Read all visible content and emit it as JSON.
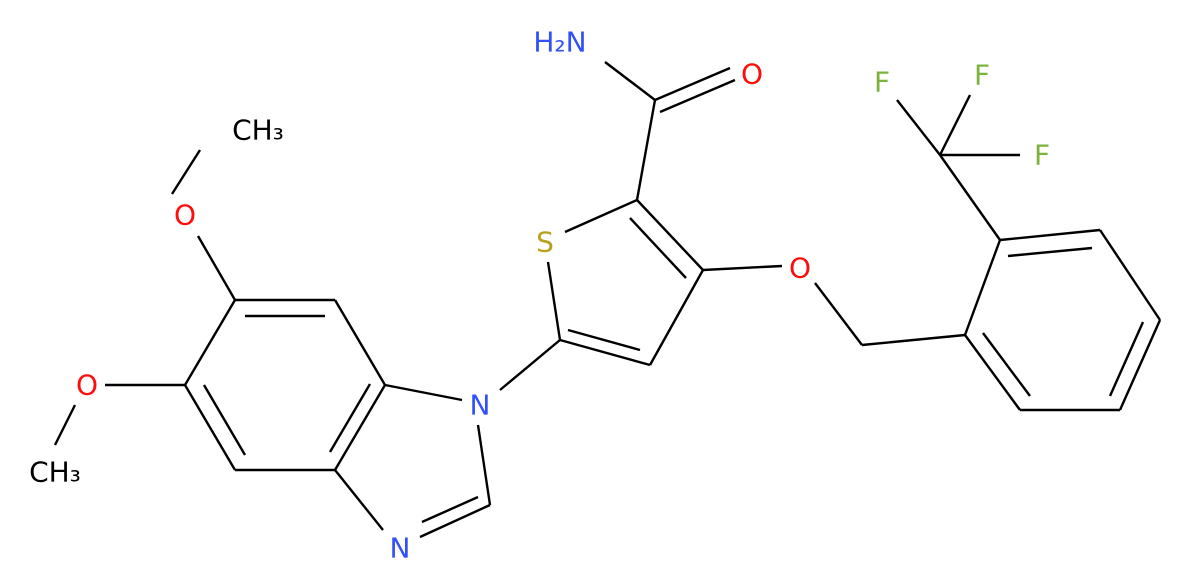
{
  "atoms": {
    "amine": "H₂N",
    "carbonyl_o": "O",
    "f1": "F",
    "f2": "F",
    "f3": "F",
    "sulfur": "S",
    "ether_o": "O",
    "methyl_top": "CH₃",
    "methoxy_o_top": "O",
    "methoxy_o_bottom": "O",
    "methyl_bottom": "CH₃",
    "n1": "N",
    "n3": "N"
  }
}
